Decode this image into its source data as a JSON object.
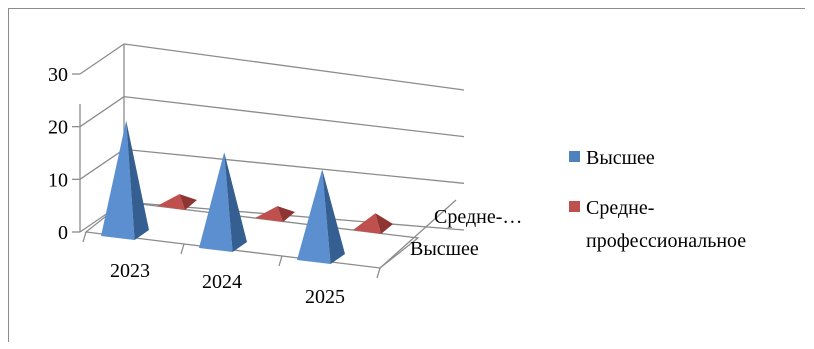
{
  "chart_data": {
    "type": "bar",
    "subtype": "3d-pyramid",
    "title": "",
    "categories": [
      "2023",
      "2024",
      "2025"
    ],
    "depth_labels": [
      "Средне-…",
      "Высшее"
    ],
    "series": [
      {
        "name": "Высшее",
        "values": [
          23,
          19,
          18
        ],
        "color": "#4f81bd"
      },
      {
        "name": "Средне-профессиональное",
        "values": [
          2,
          2,
          3
        ],
        "color": "#c0504d"
      }
    ],
    "y_ticks": [
      "0",
      "10",
      "20",
      "30"
    ],
    "ylim": [
      0,
      30
    ],
    "grid": true,
    "legend_position": "right"
  },
  "legend": {
    "item1": "Высшее",
    "item2_line1": "Средне-",
    "item2_line2": "профессиональное"
  }
}
